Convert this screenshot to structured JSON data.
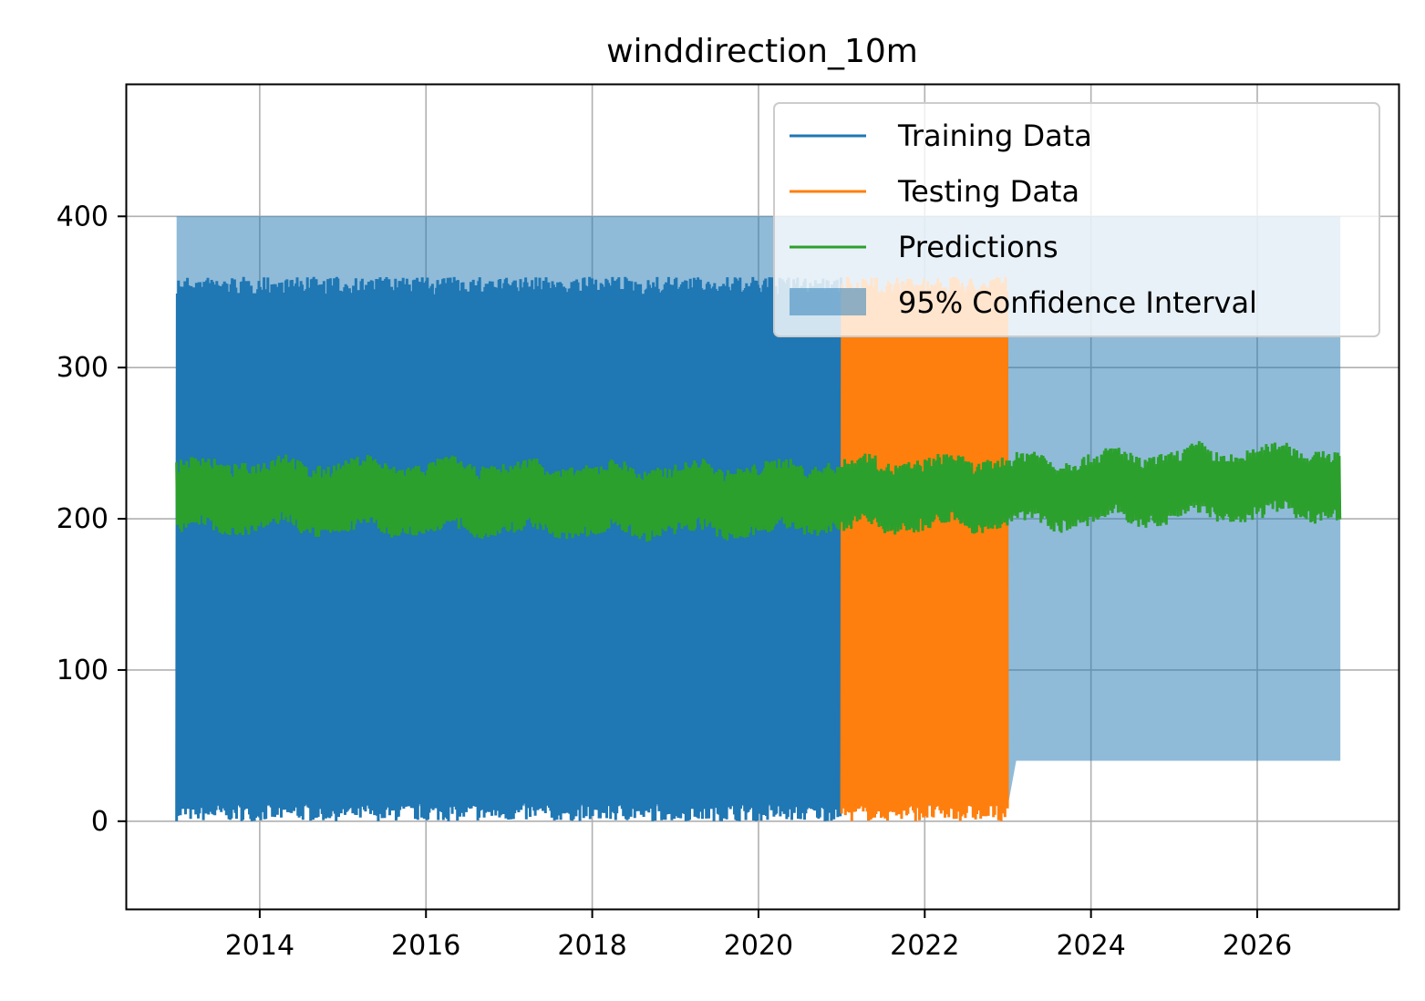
{
  "chart_data": {
    "type": "line",
    "title": "winddirection_10m",
    "xlabel": "",
    "ylabel": "",
    "xlim": [
      2012.4,
      2027.7
    ],
    "ylim": [
      -58,
      487
    ],
    "x_ticks": [
      2014,
      2016,
      2018,
      2020,
      2022,
      2024,
      2026
    ],
    "y_ticks": [
      0,
      100,
      200,
      300,
      400
    ],
    "grid": true,
    "legend_position": "upper right",
    "colors": {
      "training": "#1f77b4",
      "testing": "#ff7f0e",
      "predictions": "#2ca02c",
      "confidence": "#1f77b4"
    },
    "series": [
      {
        "name": "Training Data",
        "kind": "line",
        "x_range": [
          2013.0,
          2021.0
        ],
        "y_range": [
          0,
          360
        ]
      },
      {
        "name": "Testing Data",
        "kind": "line",
        "x_range": [
          2021.0,
          2023.0
        ],
        "y_range": [
          0,
          360
        ]
      },
      {
        "name": "Predictions",
        "kind": "line",
        "x": [
          2013.0,
          2013.3,
          2013.6,
          2014.0,
          2014.3,
          2014.6,
          2015.0,
          2015.3,
          2015.6,
          2016.0,
          2016.3,
          2016.6,
          2017.0,
          2017.3,
          2017.6,
          2018.0,
          2018.3,
          2018.6,
          2019.0,
          2019.3,
          2019.6,
          2020.0,
          2020.3,
          2020.6,
          2021.0,
          2021.3,
          2021.6,
          2022.0,
          2022.3,
          2022.6,
          2023.0,
          2023.3,
          2023.6,
          2024.0,
          2024.3,
          2024.6,
          2025.0,
          2025.3,
          2025.6,
          2026.0,
          2026.3,
          2026.6,
          2027.0
        ],
        "center": [
          214,
          220,
          212,
          214,
          222,
          210,
          214,
          220,
          211,
          213,
          219,
          210,
          213,
          218,
          209,
          212,
          217,
          208,
          212,
          217,
          208,
          213,
          218,
          210,
          215,
          221,
          212,
          216,
          222,
          213,
          218,
          224,
          214,
          219,
          226,
          216,
          221,
          228,
          218,
          223,
          230,
          220,
          222
        ],
        "half_width": 24
      },
      {
        "name": "95% Confidence Interval",
        "kind": "band",
        "x": [
          2013.0,
          2023.0,
          2023.1,
          2027.0
        ],
        "lower": [
          10,
          10,
          40,
          40
        ],
        "upper": [
          400,
          400,
          400,
          400
        ]
      }
    ]
  }
}
